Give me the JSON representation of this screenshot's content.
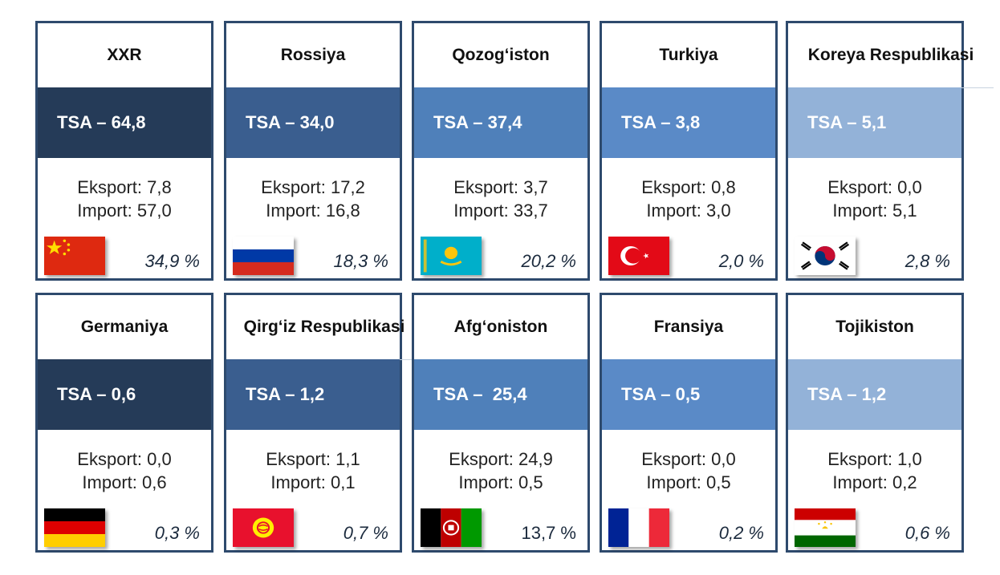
{
  "cards": [
    {
      "title": "XXR",
      "tsa": "TSA – 64,8",
      "export": "Eksport: 7,8",
      "import": "Import: 57,0",
      "share": "34,9 %",
      "flag": "china-flag-icon"
    },
    {
      "title": "Rossiya",
      "tsa": "TSA – 34,0",
      "export": "Eksport: 17,2",
      "import": "Import: 16,8",
      "share": "18,3 %",
      "flag": "russia-flag-icon"
    },
    {
      "title": "Qozog‘iston",
      "tsa": "TSA – 37,4",
      "export": "Eksport: 3,7",
      "import": "Import: 33,7",
      "share": "20,2 %",
      "flag": "kazakhstan-flag-icon"
    },
    {
      "title": "Turkiya",
      "tsa": "TSA – 3,8",
      "export": "Eksport: 0,8",
      "import": "Import: 3,0",
      "share": "2,0 %",
      "flag": "turkey-flag-icon"
    },
    {
      "title": "Koreya Respublikasi",
      "tsa": "TSA – 5,1",
      "export": "Eksport: 0,0",
      "import": "Import: 5,1",
      "share": "2,8 %",
      "flag": "south-korea-flag-icon"
    },
    {
      "title": "Germaniya",
      "tsa": "TSA – 0,6",
      "export": "Eksport: 0,0",
      "import": "Import: 0,6",
      "share": "0,3 %",
      "flag": "germany-flag-icon"
    },
    {
      "title": "Qirg‘iz Respublikasi",
      "tsa": "TSA – 1,2",
      "export": "Eksport: 1,1",
      "import": "Import: 0,1",
      "share": "0,7 %",
      "flag": "kyrgyzstan-flag-icon"
    },
    {
      "title": "Afg‘oniston",
      "tsa": "TSA –  25,4",
      "export": "Eksport: 24,9",
      "import": "Import: 0,5",
      "share": "13,7 %",
      "flag": "afghanistan-flag-icon"
    },
    {
      "title": "Fransiya",
      "tsa": "TSA – 0,5",
      "export": "Eksport: 0,0",
      "import": "Import: 0,5",
      "share": "0,2 %",
      "flag": "france-flag-icon"
    },
    {
      "title": "Tojikiston",
      "tsa": "TSA – 1,2",
      "export": "Eksport: 1,0",
      "import": "Import: 0,2",
      "share": "0,6 %",
      "flag": "tajikistan-flag-icon"
    }
  ],
  "colors": {
    "border": "#2e4a6d",
    "tsa_col1": "#253b58",
    "tsa_col2": "#3a5e8f",
    "tsa_col3": "#4f80ba",
    "tsa_col4": "#5a8ac7",
    "tsa_col5": "#93b2d8"
  }
}
